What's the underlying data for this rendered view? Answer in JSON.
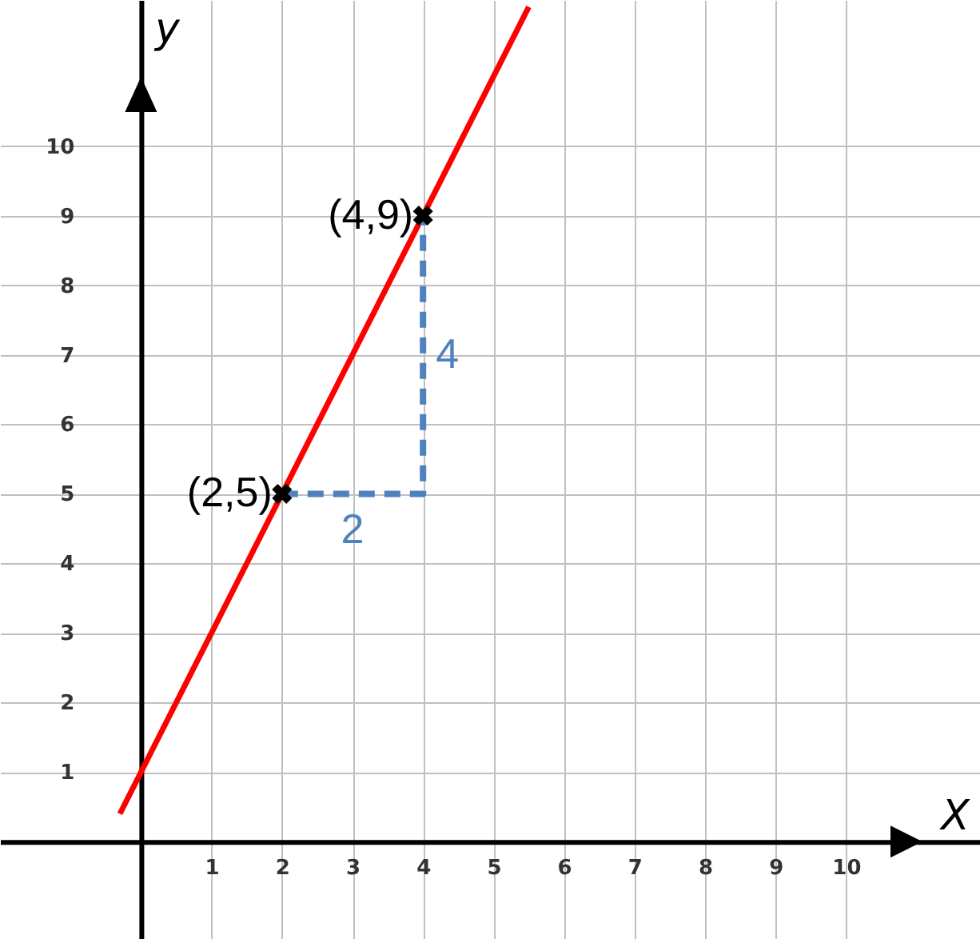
{
  "chart_data": {
    "type": "line",
    "xlabel": "X",
    "ylabel": "y",
    "xlim": [
      -2,
      11.9
    ],
    "ylim": [
      -1.4,
      12.1
    ],
    "xticks": [
      1,
      2,
      3,
      4,
      5,
      6,
      7,
      8,
      9,
      10
    ],
    "yticks": [
      1,
      2,
      3,
      4,
      5,
      6,
      7,
      8,
      9,
      10
    ],
    "grid": true,
    "series": [
      {
        "color": "#ff0000",
        "x": [
          -0.3,
          5.5
        ],
        "values": [
          0.4,
          12
        ]
      },
      {
        "type": "line",
        "line_style": "dashed",
        "color": "#4f81bd",
        "x": [
          2,
          4,
          4
        ],
        "values": [
          5,
          5,
          9
        ]
      },
      {
        "type": "scatter",
        "marker": "cross",
        "color": "#000000",
        "x": [
          2,
          4
        ],
        "values": [
          5,
          9
        ]
      }
    ],
    "annotations": [
      {
        "text": "(2,5)",
        "x": 2,
        "y": 5
      },
      {
        "text": "(4,9)",
        "x": 4,
        "y": 9
      },
      {
        "text": "2",
        "x": 3,
        "y": 5
      },
      {
        "text": "4",
        "x": 4,
        "y": 7
      }
    ]
  }
}
